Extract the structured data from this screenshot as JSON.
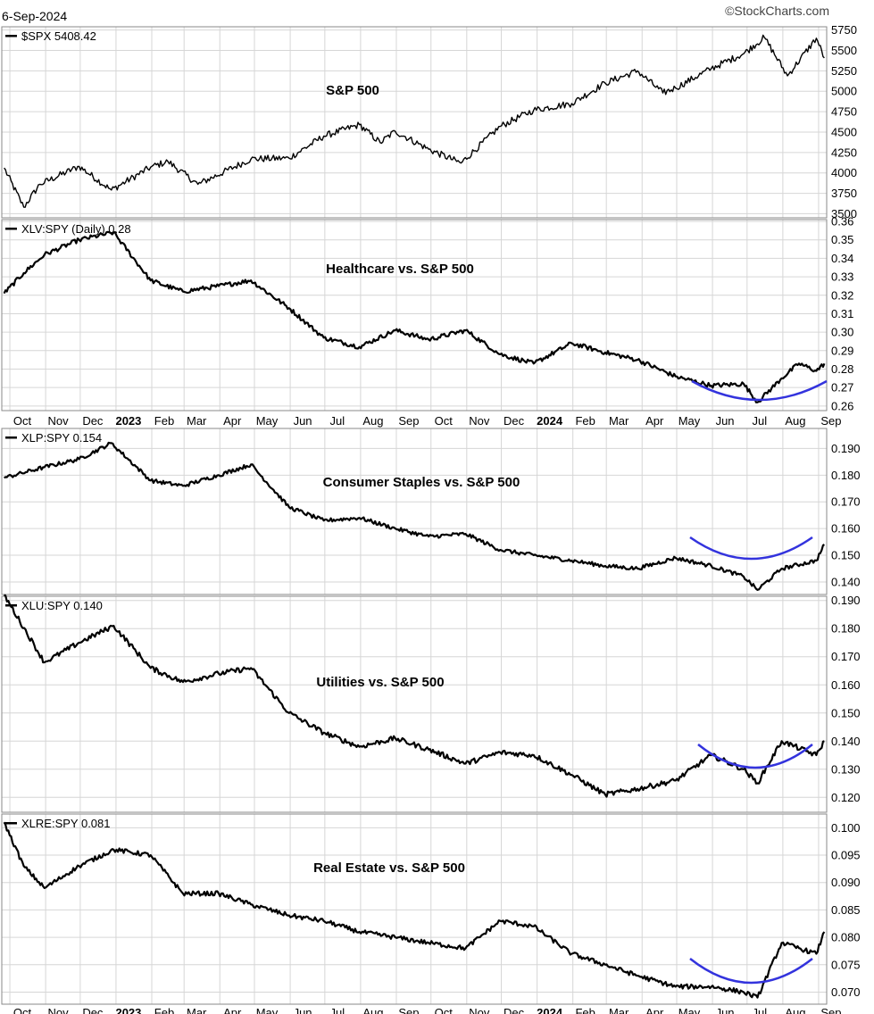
{
  "header": {
    "date": "6-Sep-2024",
    "source": "©StockCharts.com"
  },
  "colors": {
    "line": "#000000",
    "grid": "#d6d6d6",
    "arc": "#3333dd",
    "border": "#8a8a8a"
  },
  "x_axis": {
    "labels": [
      "Oct",
      "Nov",
      "Dec",
      "2023",
      "Feb",
      "Mar",
      "Apr",
      "May",
      "Jun",
      "Jul",
      "Aug",
      "Sep",
      "Oct",
      "Nov",
      "Dec",
      "2024",
      "Feb",
      "Mar",
      "Apr",
      "May",
      "Jun",
      "Jul",
      "Aug",
      "Sep"
    ],
    "bold": [
      "2023",
      "2024"
    ]
  },
  "chart_data": [
    {
      "type": "line",
      "label": "$SPX 5408.42",
      "annotation": "S&P 500",
      "ylim": [
        3450,
        5790
      ],
      "yticks": [
        "5750",
        "5500",
        "5250",
        "5000",
        "4750",
        "4500",
        "4250",
        "4000",
        "3750",
        "3500"
      ],
      "x": [
        "2022-09-26",
        "2022-10-13",
        "2022-10-27",
        "2022-11-30",
        "2022-12-28",
        "2023-01-31",
        "2023-02-15",
        "2023-03-13",
        "2023-04-28",
        "2023-05-31",
        "2023-06-30",
        "2023-07-31",
        "2023-08-18",
        "2023-08-31",
        "2023-09-29",
        "2023-10-27",
        "2023-11-30",
        "2023-12-29",
        "2024-01-31",
        "2024-02-29",
        "2024-03-28",
        "2024-04-19",
        "2024-04-30",
        "2024-05-31",
        "2024-06-28",
        "2024-07-16",
        "2024-08-05",
        "2024-08-30",
        "2024-09-06"
      ],
      "values": [
        4060,
        3580,
        3860,
        4080,
        3790,
        4070,
        4140,
        3860,
        4170,
        4180,
        4450,
        4590,
        4370,
        4510,
        4290,
        4120,
        4570,
        4770,
        4850,
        5100,
        5250,
        4980,
        5040,
        5280,
        5460,
        5660,
        5190,
        5650,
        5408.42
      ]
    },
    {
      "type": "line",
      "label": "XLV:SPY (Daily) 0.28",
      "annotation": "Healthcare vs. S&P 500",
      "ylim": [
        0.2575,
        0.361
      ],
      "yticks": [
        "0.36",
        "0.35",
        "0.34",
        "0.33",
        "0.32",
        "0.31",
        "0.30",
        "0.29",
        "0.28",
        "0.27",
        "0.26"
      ],
      "x": [
        "2022-09-26",
        "2022-10-13",
        "2022-10-31",
        "2022-11-30",
        "2022-12-30",
        "2023-01-31",
        "2023-02-28",
        "2023-03-31",
        "2023-04-28",
        "2023-05-31",
        "2023-06-30",
        "2023-07-31",
        "2023-08-31",
        "2023-09-29",
        "2023-10-31",
        "2023-11-30",
        "2023-12-29",
        "2024-01-31",
        "2024-02-29",
        "2024-03-28",
        "2024-04-30",
        "2024-05-31",
        "2024-06-28",
        "2024-07-10",
        "2024-07-31",
        "2024-08-15",
        "2024-08-30",
        "2024-09-06"
      ],
      "values": [
        0.321,
        0.332,
        0.342,
        0.35,
        0.354,
        0.328,
        0.322,
        0.325,
        0.328,
        0.313,
        0.297,
        0.292,
        0.301,
        0.296,
        0.301,
        0.288,
        0.283,
        0.294,
        0.289,
        0.285,
        0.276,
        0.271,
        0.272,
        0.262,
        0.275,
        0.283,
        0.279,
        0.283
      ]
    },
    {
      "type": "line",
      "label": "XLP:SPY 0.154",
      "annotation": "Consumer Staples vs. S&P 500",
      "ylim": [
        0.1353,
        0.1975
      ],
      "yticks": [
        "0.190",
        "0.180",
        "0.170",
        "0.160",
        "0.150",
        "0.140"
      ],
      "x": [
        "2022-09-26",
        "2022-10-31",
        "2022-11-30",
        "2022-12-28",
        "2023-01-31",
        "2023-02-28",
        "2023-03-31",
        "2023-04-28",
        "2023-05-31",
        "2023-06-30",
        "2023-07-31",
        "2023-08-31",
        "2023-09-29",
        "2023-10-31",
        "2023-11-30",
        "2023-12-29",
        "2024-01-31",
        "2024-02-29",
        "2024-03-28",
        "2024-04-30",
        "2024-05-31",
        "2024-06-28",
        "2024-07-10",
        "2024-07-31",
        "2024-08-30",
        "2024-09-06"
      ],
      "values": [
        0.179,
        0.183,
        0.186,
        0.192,
        0.178,
        0.176,
        0.18,
        0.184,
        0.168,
        0.163,
        0.164,
        0.16,
        0.157,
        0.158,
        0.152,
        0.15,
        0.148,
        0.146,
        0.145,
        0.149,
        0.146,
        0.142,
        0.137,
        0.145,
        0.148,
        0.154
      ]
    },
    {
      "type": "line",
      "label": "XLU:SPY 0.140",
      "annotation": "Utilities vs. S&P 500",
      "ylim": [
        0.1147,
        0.1915
      ],
      "yticks": [
        "0.190",
        "0.180",
        "0.170",
        "0.160",
        "0.150",
        "0.140",
        "0.130",
        "0.120"
      ],
      "x": [
        "2022-09-26",
        "2022-10-31",
        "2022-11-30",
        "2022-12-30",
        "2023-01-31",
        "2023-02-28",
        "2023-03-31",
        "2023-04-28",
        "2023-05-31",
        "2023-06-30",
        "2023-07-31",
        "2023-08-31",
        "2023-09-29",
        "2023-10-31",
        "2023-11-30",
        "2023-12-29",
        "2024-01-31",
        "2024-02-29",
        "2024-03-28",
        "2024-04-30",
        "2024-05-31",
        "2024-06-28",
        "2024-07-10",
        "2024-07-31",
        "2024-08-30",
        "2024-09-06"
      ],
      "values": [
        0.192,
        0.168,
        0.175,
        0.181,
        0.166,
        0.161,
        0.164,
        0.166,
        0.15,
        0.143,
        0.138,
        0.141,
        0.137,
        0.132,
        0.136,
        0.135,
        0.128,
        0.121,
        0.123,
        0.126,
        0.135,
        0.13,
        0.125,
        0.14,
        0.135,
        0.14
      ]
    },
    {
      "type": "line",
      "label": "XLRE:SPY 0.081",
      "annotation": "Real Estate vs. S&P 500",
      "ylim": [
        0.0678,
        0.1025
      ],
      "yticks": [
        "0.100",
        "0.095",
        "0.090",
        "0.085",
        "0.080",
        "0.075",
        "0.070"
      ],
      "x": [
        "2022-09-26",
        "2022-10-13",
        "2022-10-31",
        "2022-11-30",
        "2022-12-30",
        "2023-01-31",
        "2023-02-28",
        "2023-03-31",
        "2023-04-28",
        "2023-05-31",
        "2023-06-30",
        "2023-07-31",
        "2023-08-31",
        "2023-09-29",
        "2023-10-31",
        "2023-11-30",
        "2023-12-29",
        "2024-01-31",
        "2024-02-29",
        "2024-03-28",
        "2024-04-30",
        "2024-05-31",
        "2024-06-28",
        "2024-07-10",
        "2024-07-31",
        "2024-08-30",
        "2024-09-06"
      ],
      "values": [
        0.101,
        0.093,
        0.089,
        0.093,
        0.096,
        0.095,
        0.088,
        0.088,
        0.086,
        0.084,
        0.083,
        0.081,
        0.08,
        0.079,
        0.078,
        0.083,
        0.082,
        0.077,
        0.075,
        0.073,
        0.071,
        0.071,
        0.07,
        0.069,
        0.079,
        0.077,
        0.081
      ]
    }
  ]
}
